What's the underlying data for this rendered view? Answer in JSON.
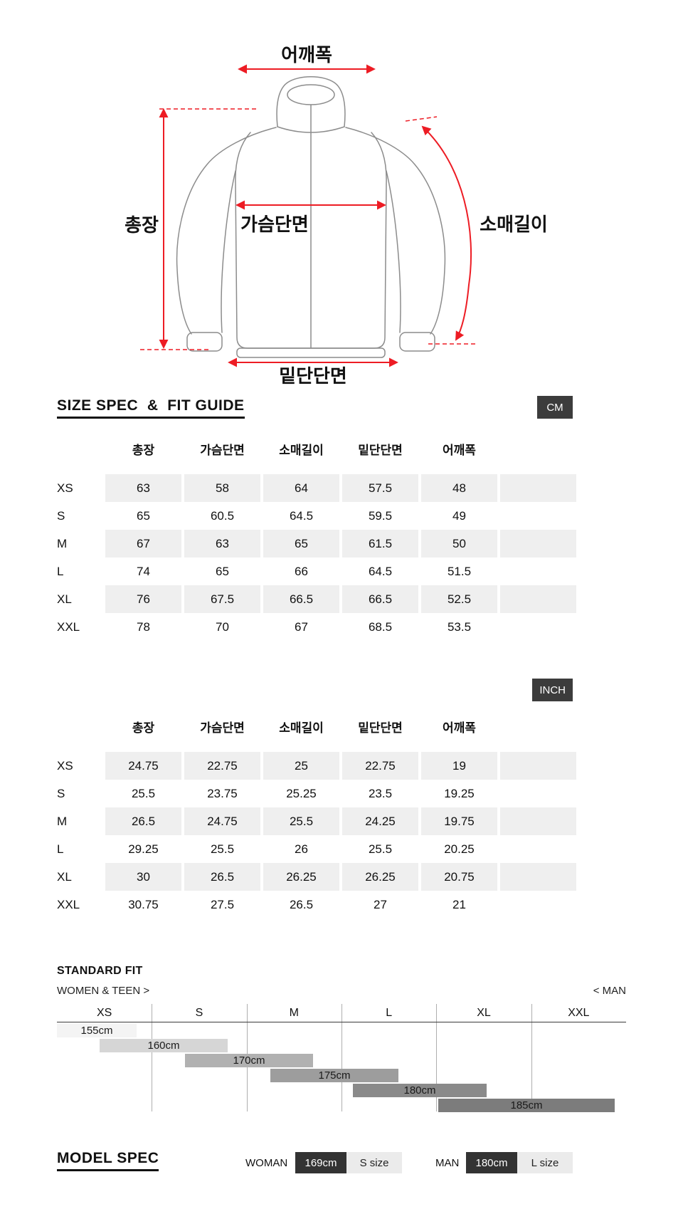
{
  "diagram": {
    "labels": {
      "shoulder": "어깨폭",
      "length": "총장",
      "chest": "가슴단면",
      "sleeve": "소매길이",
      "hem": "밑단단면"
    },
    "outline_color": "#8c8c8c",
    "arrow_color": "#ed1c24"
  },
  "size_spec": {
    "title": "SIZE SPEC  &  FIT GUIDE",
    "badges": {
      "cm": "CM",
      "inch": "INCH"
    },
    "badge_bg": "#3c3c3c",
    "stripe_color": "#efefef",
    "columns": [
      "총장",
      "가슴단면",
      "소매길이",
      "밑단단면",
      "어깨폭"
    ],
    "cm": {
      "rows": [
        {
          "size": "XS",
          "values": [
            "63",
            "58",
            "64",
            "57.5",
            "48"
          ]
        },
        {
          "size": "S",
          "values": [
            "65",
            "60.5",
            "64.5",
            "59.5",
            "49"
          ]
        },
        {
          "size": "M",
          "values": [
            "67",
            "63",
            "65",
            "61.5",
            "50"
          ]
        },
        {
          "size": "L",
          "values": [
            "74",
            "65",
            "66",
            "64.5",
            "51.5"
          ]
        },
        {
          "size": "XL",
          "values": [
            "76",
            "67.5",
            "66.5",
            "66.5",
            "52.5"
          ]
        },
        {
          "size": "XXL",
          "values": [
            "78",
            "70",
            "67",
            "68.5",
            "53.5"
          ]
        }
      ]
    },
    "inch": {
      "rows": [
        {
          "size": "XS",
          "values": [
            "24.75",
            "22.75",
            "25",
            "22.75",
            "19"
          ]
        },
        {
          "size": "S",
          "values": [
            "25.5",
            "23.75",
            "25.25",
            "23.5",
            "19.25"
          ]
        },
        {
          "size": "M",
          "values": [
            "26.5",
            "24.75",
            "25.5",
            "24.25",
            "19.75"
          ]
        },
        {
          "size": "L",
          "values": [
            "29.25",
            "25.5",
            "26",
            "25.5",
            "20.25"
          ]
        },
        {
          "size": "XL",
          "values": [
            "30",
            "26.5",
            "26.25",
            "26.25",
            "20.75"
          ]
        },
        {
          "size": "XXL",
          "values": [
            "30.75",
            "27.5",
            "26.5",
            "27",
            "21"
          ]
        }
      ]
    }
  },
  "standard_fit": {
    "title": "STANDARD FIT",
    "left_label": "WOMEN & TEEN >",
    "right_label": "< MAN",
    "sizes": [
      "XS",
      "S",
      "M",
      "L",
      "XL",
      "XXL"
    ],
    "bars": [
      {
        "label": "155cm",
        "left_pct": 0,
        "width_pct": 14,
        "color": "#f4f4f4"
      },
      {
        "label": "160cm",
        "left_pct": 7.5,
        "width_pct": 22.5,
        "color": "#d6d6d6"
      },
      {
        "label": "170cm",
        "left_pct": 22.5,
        "width_pct": 22.5,
        "color": "#b1b1b1"
      },
      {
        "label": "175cm",
        "left_pct": 37.5,
        "width_pct": 22.5,
        "color": "#9d9d9d"
      },
      {
        "label": "180cm",
        "left_pct": 52,
        "width_pct": 23.5,
        "color": "#8a8a8a"
      },
      {
        "label": "185cm",
        "left_pct": 67,
        "width_pct": 31,
        "color": "#7c7c7c"
      }
    ]
  },
  "model_spec": {
    "title": "MODEL SPEC",
    "woman": {
      "label": "WOMAN",
      "height": "169cm",
      "size": "S size"
    },
    "man": {
      "label": "MAN",
      "height": "180cm",
      "size": "L size"
    }
  },
  "chart_data": {
    "type": "bar",
    "title": "STANDARD FIT",
    "categories": [
      "XS",
      "S",
      "M",
      "L",
      "XL",
      "XXL"
    ],
    "series": [
      {
        "name": "155cm",
        "size_range": [
          "XS"
        ]
      },
      {
        "name": "160cm",
        "size_range": [
          "XS",
          "S"
        ]
      },
      {
        "name": "170cm",
        "size_range": [
          "S",
          "M"
        ]
      },
      {
        "name": "175cm",
        "size_range": [
          "M",
          "L"
        ]
      },
      {
        "name": "180cm",
        "size_range": [
          "L",
          "XL"
        ]
      },
      {
        "name": "185cm",
        "size_range": [
          "XL",
          "XXL"
        ]
      }
    ],
    "legend_position": "none",
    "grid": "vertical-only"
  }
}
